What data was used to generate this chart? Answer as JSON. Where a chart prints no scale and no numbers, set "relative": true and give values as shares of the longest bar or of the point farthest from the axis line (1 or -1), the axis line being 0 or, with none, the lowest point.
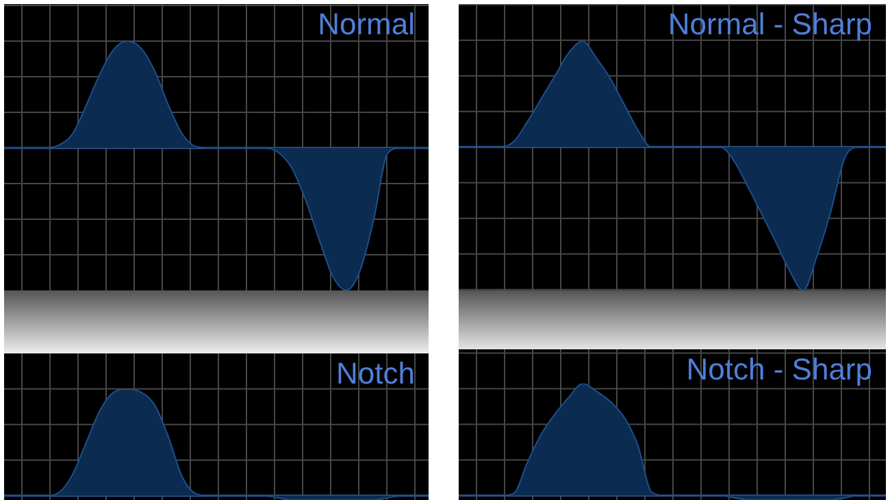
{
  "chart_data": [
    {
      "type": "area",
      "title": "Normal",
      "relative": true,
      "grid": true,
      "tick_labels": false,
      "color": "#0b2b50",
      "categories": [
        null,
        null,
        null,
        null,
        null,
        null,
        null,
        null,
        null,
        null,
        null,
        null,
        null,
        null,
        null,
        null,
        null,
        null,
        null,
        null,
        null,
        null,
        null,
        null,
        null,
        null,
        null,
        null,
        null,
        null,
        null,
        null
      ],
      "values": [
        0,
        0,
        0,
        0,
        0.02,
        0.1,
        0.3,
        0.52,
        0.69,
        0.75,
        0.7,
        0.54,
        0.3,
        0.1,
        0.01,
        0,
        0,
        0,
        0,
        0,
        -0.03,
        -0.14,
        -0.36,
        -0.64,
        -0.9,
        -1,
        -0.86,
        -0.5,
        -0.04,
        0,
        0,
        0
      ]
    },
    {
      "type": "area",
      "title": "Normal - Sharp",
      "relative": true,
      "grid": true,
      "tick_labels": false,
      "color": "#0b2b50",
      "categories": [
        null,
        null,
        null,
        null,
        null,
        null,
        null,
        null,
        null,
        null,
        null,
        null,
        null,
        null,
        null,
        null,
        null,
        null,
        null,
        null,
        null,
        null,
        null,
        null,
        null,
        null,
        null,
        null,
        null,
        null,
        null,
        null
      ],
      "values": [
        0,
        0,
        0,
        0,
        0.04,
        0.18,
        0.34,
        0.5,
        0.66,
        0.74,
        0.62,
        0.48,
        0.3,
        0.12,
        0,
        0,
        0,
        0,
        0,
        0,
        -0.1,
        -0.28,
        -0.47,
        -0.66,
        -0.86,
        -1,
        -0.76,
        -0.45,
        -0.08,
        0,
        0,
        0
      ]
    },
    {
      "type": "area",
      "title": "Notch",
      "relative": true,
      "grid": true,
      "tick_labels": false,
      "color": "#0b2b50",
      "categories": [
        null,
        null,
        null,
        null,
        null,
        null,
        null,
        null,
        null,
        null,
        null,
        null,
        null,
        null,
        null,
        null,
        null,
        null,
        null,
        null,
        null,
        null,
        null,
        null,
        null,
        null,
        null,
        null,
        null,
        null,
        null,
        null
      ],
      "values": [
        0,
        0,
        0,
        0,
        0.03,
        0.2,
        0.5,
        0.8,
        0.97,
        1,
        0.97,
        0.85,
        0.55,
        0.18,
        0.02,
        0,
        0,
        0,
        0,
        0,
        -0.02,
        -0.04,
        -0.04,
        -0.04,
        -0.04,
        -0.04,
        -0.04,
        -0.04,
        -0.02,
        0,
        0,
        0
      ]
    },
    {
      "type": "area",
      "title": "Notch - Sharp",
      "relative": true,
      "grid": true,
      "tick_labels": false,
      "color": "#0b2b50",
      "categories": [
        null,
        null,
        null,
        null,
        null,
        null,
        null,
        null,
        null,
        null,
        null,
        null,
        null,
        null,
        null,
        null,
        null,
        null,
        null,
        null,
        null,
        null,
        null,
        null,
        null,
        null,
        null,
        null,
        null,
        null,
        null,
        null
      ],
      "values": [
        0,
        0,
        0,
        0,
        0.02,
        0.3,
        0.55,
        0.73,
        0.88,
        1,
        0.93,
        0.84,
        0.7,
        0.45,
        0.03,
        0,
        0,
        0,
        0,
        0,
        -0.02,
        -0.04,
        -0.04,
        -0.04,
        -0.04,
        -0.04,
        -0.04,
        -0.04,
        -0.02,
        0,
        0,
        0
      ]
    }
  ]
}
